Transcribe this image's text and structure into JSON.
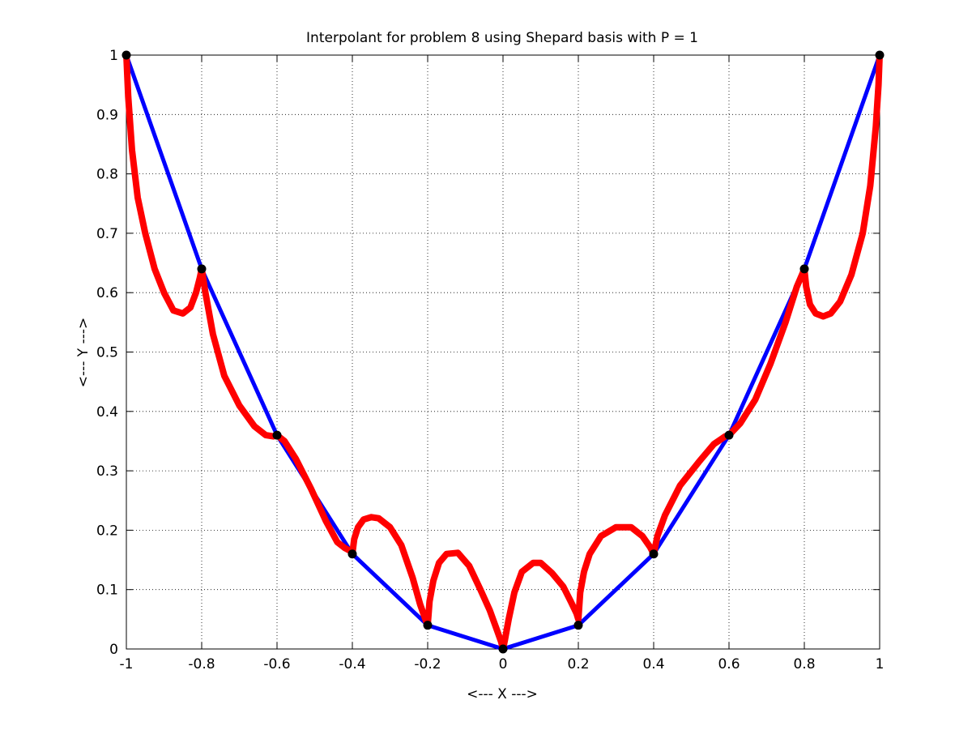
{
  "chart_data": {
    "type": "line",
    "title": "Interpolant for problem 8 using Shepard basis with P = 1",
    "xlabel": "<--- X --->",
    "ylabel": "<--- Y --->",
    "xlim": [
      -1,
      1
    ],
    "ylim": [
      0,
      1
    ],
    "xticks": [
      -1,
      -0.8,
      -0.6,
      -0.4,
      -0.2,
      0,
      0.2,
      0.4,
      0.6,
      0.8,
      1
    ],
    "xtick_labels": [
      "-1",
      "-0.8",
      "-0.6",
      "-0.4",
      "-0.2",
      "0",
      "0.2",
      "0.4",
      "0.6",
      "0.8",
      "1"
    ],
    "yticks": [
      0,
      0.1,
      0.2,
      0.3,
      0.4,
      0.5,
      0.6,
      0.7,
      0.8,
      0.9,
      1
    ],
    "ytick_labels": [
      "0",
      "0.1",
      "0.2",
      "0.3",
      "0.4",
      "0.5",
      "0.6",
      "0.7",
      "0.8",
      "0.9",
      "1"
    ],
    "grid": true,
    "legend": "none",
    "nodes": {
      "x": [
        -1,
        -0.8,
        -0.6,
        -0.4,
        -0.2,
        0,
        0.2,
        0.4,
        0.6,
        0.8,
        1
      ],
      "y": [
        1,
        0.64,
        0.36,
        0.16,
        0.04,
        0,
        0.04,
        0.16,
        0.36,
        0.64,
        1
      ],
      "color": "#000000"
    },
    "series": [
      {
        "color": "#0000ff",
        "x": [
          -1,
          -0.8,
          -0.6,
          -0.4,
          -0.2,
          0,
          0.2,
          0.4,
          0.6,
          0.8,
          1
        ],
        "y": [
          1,
          0.64,
          0.36,
          0.16,
          0.04,
          0,
          0.04,
          0.16,
          0.36,
          0.64,
          1
        ]
      },
      {
        "color": "#ff0000",
        "x": [
          -1,
          -0.995,
          -0.985,
          -0.97,
          -0.95,
          -0.925,
          -0.9,
          -0.875,
          -0.85,
          -0.83,
          -0.815,
          -0.805,
          -0.8,
          -0.79,
          -0.77,
          -0.74,
          -0.7,
          -0.66,
          -0.63,
          -0.61,
          -0.6,
          -0.58,
          -0.55,
          -0.51,
          -0.47,
          -0.44,
          -0.42,
          -0.405,
          -0.4,
          -0.395,
          -0.385,
          -0.37,
          -0.35,
          -0.33,
          -0.3,
          -0.27,
          -0.24,
          -0.22,
          -0.205,
          -0.2,
          -0.195,
          -0.185,
          -0.17,
          -0.15,
          -0.12,
          -0.09,
          -0.06,
          -0.035,
          -0.015,
          -0.005,
          0,
          0.005,
          0.015,
          0.03,
          0.05,
          0.08,
          0.1,
          0.13,
          0.16,
          0.18,
          0.195,
          0.2,
          0.205,
          0.215,
          0.23,
          0.26,
          0.3,
          0.34,
          0.37,
          0.39,
          0.4,
          0.41,
          0.43,
          0.47,
          0.52,
          0.56,
          0.59,
          0.6,
          0.63,
          0.67,
          0.71,
          0.75,
          0.78,
          0.795,
          0.8,
          0.805,
          0.815,
          0.83,
          0.85,
          0.87,
          0.895,
          0.925,
          0.955,
          0.975,
          0.99,
          0.997,
          1
        ],
        "y": [
          1,
          0.93,
          0.84,
          0.76,
          0.7,
          0.64,
          0.6,
          0.57,
          0.565,
          0.575,
          0.6,
          0.625,
          0.64,
          0.6,
          0.53,
          0.46,
          0.41,
          0.375,
          0.36,
          0.358,
          0.36,
          0.35,
          0.32,
          0.27,
          0.215,
          0.18,
          0.17,
          0.165,
          0.16,
          0.185,
          0.205,
          0.218,
          0.222,
          0.22,
          0.205,
          0.175,
          0.12,
          0.075,
          0.048,
          0.04,
          0.08,
          0.115,
          0.145,
          0.16,
          0.162,
          0.14,
          0.1,
          0.065,
          0.03,
          0.012,
          0,
          0.015,
          0.05,
          0.095,
          0.13,
          0.145,
          0.145,
          0.128,
          0.105,
          0.08,
          0.06,
          0.05,
          0.095,
          0.13,
          0.16,
          0.19,
          0.205,
          0.205,
          0.19,
          0.172,
          0.16,
          0.19,
          0.225,
          0.275,
          0.315,
          0.345,
          0.358,
          0.36,
          0.38,
          0.42,
          0.48,
          0.55,
          0.61,
          0.632,
          0.64,
          0.61,
          0.58,
          0.565,
          0.56,
          0.565,
          0.585,
          0.63,
          0.7,
          0.78,
          0.88,
          0.95,
          1
        ]
      }
    ]
  }
}
